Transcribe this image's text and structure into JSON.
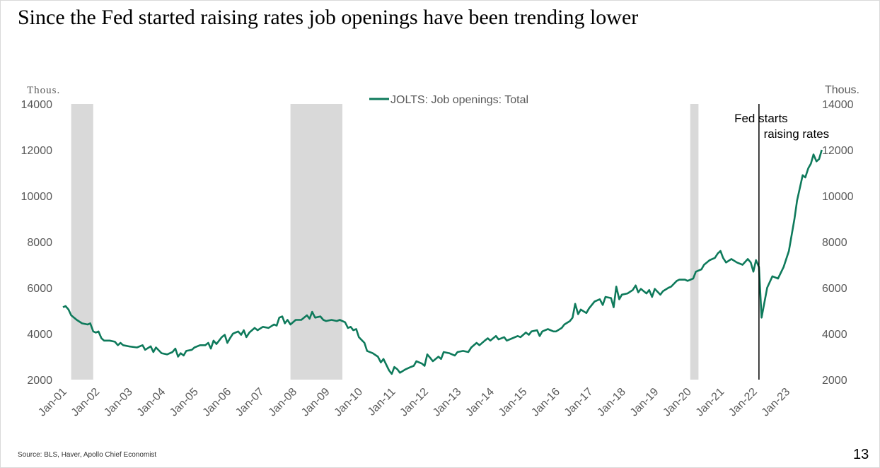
{
  "page": {
    "title": "Since the Fed started raising rates job openings have been trending lower",
    "source": "Source: BLS, Haver, Apollo Chief Economist",
    "page_number": "13"
  },
  "colors": {
    "series": "#0e7a5b",
    "recession": "#d9d9d9",
    "axis_text": "#595959"
  },
  "chart_data": {
    "type": "line",
    "legend_position": "top-center",
    "grid": false,
    "left_unit": "Thous.",
    "right_unit": "Thous.",
    "ylim": [
      2000,
      14000
    ],
    "yticks": [
      2000,
      4000,
      6000,
      8000,
      10000,
      12000,
      14000
    ],
    "xlim": [
      2001.0,
      2023.7
    ],
    "xtick_labels": [
      "Jan-01",
      "Jan-02",
      "Jan-03",
      "Jan-04",
      "Jan-05",
      "Jan-06",
      "Jan-07",
      "Jan-08",
      "Jan-09",
      "Jan-10",
      "Jan-11",
      "Jan-12",
      "Jan-13",
      "Jan-14",
      "Jan-15",
      "Jan-16",
      "Jan-17",
      "Jan-18",
      "Jan-19",
      "Jan-20",
      "Jan-21",
      "Jan-22",
      "Jan-23"
    ],
    "recessions": [
      {
        "start": 2001.25,
        "end": 2001.92
      },
      {
        "start": 2007.92,
        "end": 2009.5
      },
      {
        "start": 2020.08,
        "end": 2020.33
      }
    ],
    "series": [
      {
        "name": "JOLTS: Job openings: Total",
        "points": [
          [
            2001.0,
            5150
          ],
          [
            2001.08,
            5200
          ],
          [
            2001.17,
            5050
          ],
          [
            2001.25,
            4800
          ],
          [
            2001.42,
            4600
          ],
          [
            2001.58,
            4450
          ],
          [
            2001.75,
            4400
          ],
          [
            2001.83,
            4450
          ],
          [
            2001.92,
            4100
          ],
          [
            2002.0,
            4050
          ],
          [
            2002.08,
            4100
          ],
          [
            2002.17,
            3800
          ],
          [
            2002.25,
            3700
          ],
          [
            2002.42,
            3700
          ],
          [
            2002.58,
            3650
          ],
          [
            2002.67,
            3500
          ],
          [
            2002.75,
            3600
          ],
          [
            2002.83,
            3500
          ],
          [
            2003.0,
            3450
          ],
          [
            2003.25,
            3400
          ],
          [
            2003.42,
            3500
          ],
          [
            2003.5,
            3300
          ],
          [
            2003.67,
            3450
          ],
          [
            2003.75,
            3200
          ],
          [
            2003.83,
            3400
          ],
          [
            2004.0,
            3150
          ],
          [
            2004.17,
            3100
          ],
          [
            2004.33,
            3200
          ],
          [
            2004.42,
            3350
          ],
          [
            2004.5,
            3000
          ],
          [
            2004.58,
            3150
          ],
          [
            2004.67,
            3050
          ],
          [
            2004.75,
            3250
          ],
          [
            2004.92,
            3300
          ],
          [
            2005.0,
            3400
          ],
          [
            2005.17,
            3500
          ],
          [
            2005.33,
            3500
          ],
          [
            2005.42,
            3600
          ],
          [
            2005.5,
            3350
          ],
          [
            2005.58,
            3700
          ],
          [
            2005.67,
            3550
          ],
          [
            2005.83,
            3850
          ],
          [
            2005.92,
            3950
          ],
          [
            2006.0,
            3600
          ],
          [
            2006.08,
            3800
          ],
          [
            2006.17,
            4000
          ],
          [
            2006.33,
            4100
          ],
          [
            2006.42,
            3950
          ],
          [
            2006.5,
            4150
          ],
          [
            2006.58,
            3850
          ],
          [
            2006.67,
            4050
          ],
          [
            2006.83,
            4250
          ],
          [
            2006.92,
            4150
          ],
          [
            2007.08,
            4300
          ],
          [
            2007.25,
            4250
          ],
          [
            2007.42,
            4400
          ],
          [
            2007.5,
            4350
          ],
          [
            2007.58,
            4700
          ],
          [
            2007.67,
            4750
          ],
          [
            2007.75,
            4450
          ],
          [
            2007.83,
            4600
          ],
          [
            2007.92,
            4400
          ],
          [
            2008.08,
            4600
          ],
          [
            2008.25,
            4600
          ],
          [
            2008.42,
            4800
          ],
          [
            2008.5,
            4650
          ],
          [
            2008.58,
            4950
          ],
          [
            2008.67,
            4700
          ],
          [
            2008.83,
            4750
          ],
          [
            2008.92,
            4600
          ],
          [
            2009.0,
            4550
          ],
          [
            2009.17,
            4600
          ],
          [
            2009.33,
            4550
          ],
          [
            2009.42,
            4600
          ],
          [
            2009.58,
            4500
          ],
          [
            2009.67,
            4250
          ],
          [
            2009.75,
            4300
          ],
          [
            2009.83,
            4150
          ],
          [
            2009.92,
            4200
          ],
          [
            2010.0,
            3850
          ],
          [
            2010.17,
            3600
          ],
          [
            2010.25,
            3250
          ],
          [
            2010.42,
            3150
          ],
          [
            2010.58,
            3000
          ],
          [
            2010.67,
            2750
          ],
          [
            2010.75,
            2900
          ],
          [
            2010.92,
            2400
          ],
          [
            2011.0,
            2250
          ],
          [
            2011.08,
            2550
          ],
          [
            2011.17,
            2450
          ],
          [
            2011.25,
            2300
          ],
          [
            2011.42,
            2450
          ],
          [
            2011.58,
            2550
          ],
          [
            2011.67,
            2600
          ],
          [
            2011.75,
            2800
          ],
          [
            2011.92,
            2700
          ],
          [
            2012.0,
            2600
          ],
          [
            2012.08,
            3100
          ],
          [
            2012.17,
            2950
          ],
          [
            2012.25,
            2800
          ],
          [
            2012.42,
            3000
          ],
          [
            2012.5,
            2900
          ],
          [
            2012.58,
            3200
          ],
          [
            2012.75,
            3150
          ],
          [
            2012.92,
            3050
          ],
          [
            2013.0,
            3200
          ],
          [
            2013.17,
            3250
          ],
          [
            2013.33,
            3200
          ],
          [
            2013.42,
            3400
          ],
          [
            2013.58,
            3600
          ],
          [
            2013.67,
            3500
          ],
          [
            2013.83,
            3700
          ],
          [
            2013.92,
            3800
          ],
          [
            2014.0,
            3700
          ],
          [
            2014.17,
            3900
          ],
          [
            2014.25,
            3750
          ],
          [
            2014.42,
            3850
          ],
          [
            2014.5,
            3700
          ],
          [
            2014.67,
            3800
          ],
          [
            2014.83,
            3900
          ],
          [
            2014.92,
            3850
          ],
          [
            2015.08,
            4050
          ],
          [
            2015.17,
            3950
          ],
          [
            2015.25,
            4100
          ],
          [
            2015.42,
            4150
          ],
          [
            2015.5,
            3900
          ],
          [
            2015.58,
            4100
          ],
          [
            2015.75,
            4200
          ],
          [
            2015.92,
            4100
          ],
          [
            2016.0,
            4100
          ],
          [
            2016.17,
            4250
          ],
          [
            2016.25,
            4400
          ],
          [
            2016.42,
            4550
          ],
          [
            2016.5,
            4700
          ],
          [
            2016.58,
            5300
          ],
          [
            2016.67,
            4850
          ],
          [
            2016.75,
            5050
          ],
          [
            2016.92,
            4900
          ],
          [
            2017.0,
            5100
          ],
          [
            2017.17,
            5400
          ],
          [
            2017.33,
            5500
          ],
          [
            2017.42,
            5250
          ],
          [
            2017.5,
            5600
          ],
          [
            2017.67,
            5550
          ],
          [
            2017.75,
            5150
          ],
          [
            2017.83,
            6050
          ],
          [
            2017.92,
            5500
          ],
          [
            2018.0,
            5700
          ],
          [
            2018.17,
            5750
          ],
          [
            2018.33,
            5900
          ],
          [
            2018.42,
            6100
          ],
          [
            2018.5,
            5800
          ],
          [
            2018.58,
            5950
          ],
          [
            2018.75,
            5750
          ],
          [
            2018.83,
            5900
          ],
          [
            2018.92,
            5600
          ],
          [
            2019.0,
            5950
          ],
          [
            2019.17,
            5700
          ],
          [
            2019.25,
            5850
          ],
          [
            2019.42,
            6000
          ],
          [
            2019.5,
            6050
          ],
          [
            2019.67,
            6300
          ],
          [
            2019.75,
            6350
          ],
          [
            2019.92,
            6350
          ],
          [
            2020.0,
            6300
          ],
          [
            2020.17,
            6400
          ],
          [
            2020.25,
            6700
          ],
          [
            2020.42,
            6800
          ],
          [
            2020.5,
            7000
          ],
          [
            2020.67,
            7200
          ],
          [
            2020.83,
            7300
          ],
          [
            2020.92,
            7500
          ],
          [
            2021.0,
            7600
          ],
          [
            2021.08,
            7300
          ],
          [
            2021.17,
            7100
          ],
          [
            2021.33,
            7250
          ],
          [
            2021.5,
            7100
          ],
          [
            2021.67,
            7000
          ],
          [
            2021.83,
            7250
          ],
          [
            2021.92,
            7100
          ],
          [
            2022.0,
            6700
          ],
          [
            2022.08,
            7200
          ],
          [
            2022.17,
            6900
          ],
          [
            2022.25,
            4700
          ],
          [
            2022.42,
            6000
          ],
          [
            2022.58,
            6500
          ],
          [
            2022.75,
            6400
          ],
          [
            2022.92,
            6900
          ],
          [
            2023.08,
            7600
          ],
          [
            2023.25,
            9000
          ],
          [
            2023.33,
            9800
          ],
          [
            2023.5,
            10900
          ],
          [
            2023.58,
            10800
          ],
          [
            2023.67,
            11200
          ],
          [
            2023.75,
            11400
          ],
          [
            2023.83,
            11800
          ],
          [
            2023.92,
            11500
          ],
          [
            2024.0,
            11600
          ],
          [
            2024.08,
            12000
          ]
        ]
      }
    ],
    "annotations": [
      {
        "text_line1": "Fed starts",
        "text_line2": "raising rates",
        "x": 2022.17
      }
    ]
  }
}
